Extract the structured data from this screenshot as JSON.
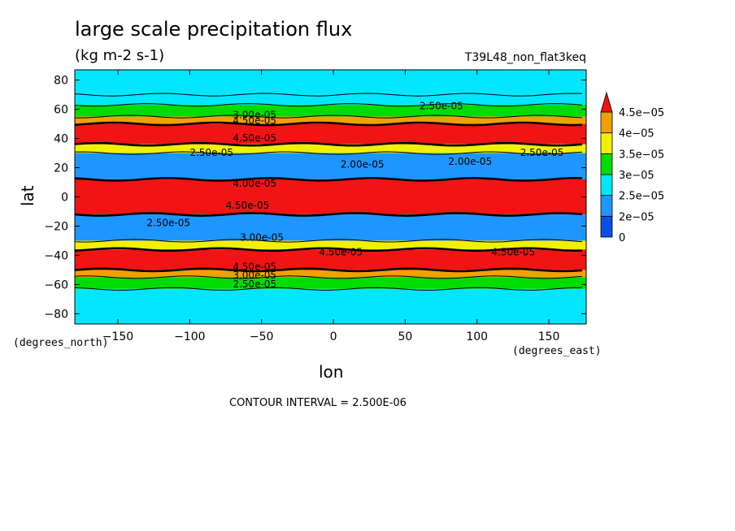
{
  "chart_data": {
    "type": "heatmap",
    "title": "large scale precipitation flux",
    "units": "(kg m-2 s-1)",
    "run_id": "T39L48_non_flat3keq",
    "xlabel": "lon",
    "ylabel": "lat",
    "x_unit_label": "(degrees_east)",
    "y_unit_label": "(degrees_north)",
    "xlim": [
      -180,
      176
    ],
    "ylim": [
      -87,
      87
    ],
    "x_ticks": [
      -150,
      -100,
      -50,
      0,
      50,
      100,
      150
    ],
    "y_ticks": [
      80,
      60,
      40,
      20,
      0,
      -20,
      -40,
      -60,
      -80
    ],
    "contour_interval_text": "CONTOUR INTERVAL = 2.500E-06",
    "levels": [
      0,
      2e-05,
      2.5e-05,
      3e-05,
      3.5e-05,
      4e-05,
      4.5e-05
    ],
    "level_labels": [
      "0",
      "2e-05",
      "2.5e-05",
      "3e-05",
      "3.5e-05",
      "4e-05",
      "4.5e-05"
    ],
    "level_colors": [
      "#0a4ee6",
      "#1e96ff",
      "#00e6ff",
      "#00dc00",
      "#f0f000",
      "#f0a000",
      "#f01414"
    ],
    "latitude_bands": [
      {
        "lat": [
          70,
          87
        ],
        "value": 2.6e-05
      },
      {
        "lat": [
          63,
          70
        ],
        "value": 2.6e-05
      },
      {
        "lat": [
          55,
          63
        ],
        "value": 3.2e-05
      },
      {
        "lat": [
          50,
          55
        ],
        "value": 4.2e-05
      },
      {
        "lat": [
          36,
          50
        ],
        "value": 5e-05
      },
      {
        "lat": [
          30,
          36
        ],
        "value": 3.8e-05
      },
      {
        "lat": [
          12,
          30
        ],
        "value": 2.3e-05
      },
      {
        "lat": [
          -12,
          12
        ],
        "value": 5e-05
      },
      {
        "lat": [
          -30,
          -12
        ],
        "value": 2.4e-05
      },
      {
        "lat": [
          -36,
          -30
        ],
        "value": 3.7e-05
      },
      {
        "lat": [
          -50,
          -36
        ],
        "value": 5e-05
      },
      {
        "lat": [
          -55,
          -50
        ],
        "value": 4e-05
      },
      {
        "lat": [
          -63,
          -55
        ],
        "value": 3e-05
      },
      {
        "lat": [
          -87,
          -63
        ],
        "value": 2.6e-05
      }
    ],
    "contour_labels": [
      {
        "text": "2.50e-05",
        "lon": 60,
        "lat": 60
      },
      {
        "text": "3.00e-05",
        "lon": -70,
        "lat": 54
      },
      {
        "text": "4.50e-05",
        "lon": -70,
        "lat": 50
      },
      {
        "text": "4.50e-05",
        "lon": -70,
        "lat": 38
      },
      {
        "text": "2.50e-05",
        "lon": -100,
        "lat": 28
      },
      {
        "text": "2.00e-05",
        "lon": 5,
        "lat": 20
      },
      {
        "text": "2.00e-05",
        "lon": 80,
        "lat": 22
      },
      {
        "text": "2.50e-05",
        "lon": 130,
        "lat": 28
      },
      {
        "text": "4.00e-05",
        "lon": -70,
        "lat": 7
      },
      {
        "text": "4.50e-05",
        "lon": -75,
        "lat": -8
      },
      {
        "text": "2.50e-05",
        "lon": -130,
        "lat": -20
      },
      {
        "text": "3.00e-05",
        "lon": -65,
        "lat": -30
      },
      {
        "text": "4.50e-05",
        "lon": -10,
        "lat": -40
      },
      {
        "text": "4.50e-05",
        "lon": 110,
        "lat": -40
      },
      {
        "text": "4.50e-05",
        "lon": -70,
        "lat": -50
      },
      {
        "text": "3.00e-05",
        "lon": -70,
        "lat": -56
      },
      {
        "text": "2.50e-05",
        "lon": -70,
        "lat": -62
      }
    ]
  }
}
